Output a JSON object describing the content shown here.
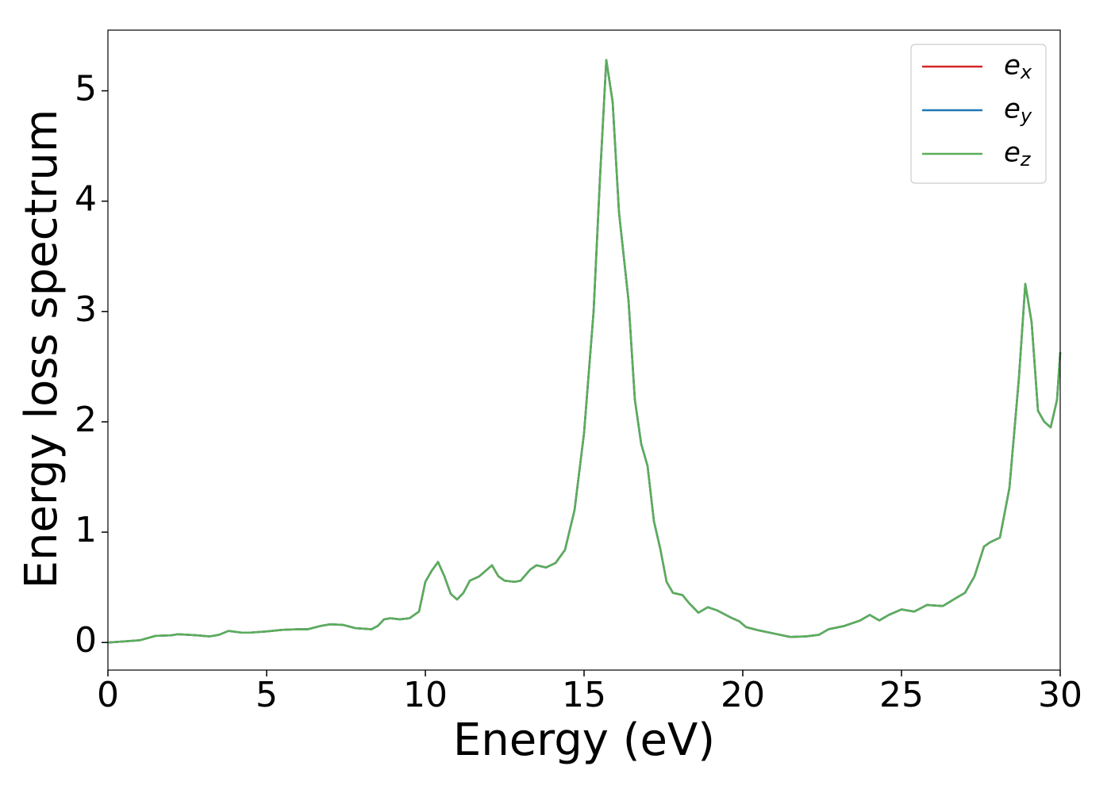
{
  "chart_data": {
    "type": "line",
    "x_label": "Energy (eV)",
    "y_label": "Energy loss spectrum",
    "xlim": [
      0,
      30
    ],
    "ylim": [
      -0.25,
      5.55
    ],
    "xticks": [
      0,
      5,
      10,
      15,
      20,
      25,
      30
    ],
    "yticks": [
      0,
      1,
      2,
      3,
      4,
      5
    ],
    "legend": "upper right",
    "grid": false,
    "x": [
      0,
      0.5,
      1,
      1.5,
      2,
      2.2,
      2.8,
      3.2,
      3.5,
      3.8,
      4.2,
      4.5,
      5,
      5.5,
      6,
      6.3,
      6.7,
      7,
      7.4,
      7.8,
      8.3,
      8.5,
      8.7,
      8.9,
      9.2,
      9.5,
      9.8,
      10,
      10.2,
      10.4,
      10.6,
      10.8,
      11,
      11.2,
      11.4,
      11.7,
      11.9,
      12.1,
      12.3,
      12.5,
      12.8,
      13,
      13.3,
      13.5,
      13.8,
      14.1,
      14.4,
      14.7,
      15,
      15.3,
      15.5,
      15.7,
      15.9,
      16.1,
      16.4,
      16.6,
      16.8,
      17,
      17.2,
      17.4,
      17.6,
      17.8,
      18.1,
      18.3,
      18.6,
      18.9,
      19.2,
      19.6,
      19.9,
      20.1,
      20.5,
      21,
      21.5,
      22,
      22.4,
      22.7,
      23.2,
      23.7,
      24,
      24.3,
      24.6,
      25,
      25.4,
      25.8,
      26.3,
      26.7,
      27,
      27.3,
      27.6,
      27.8,
      28.1,
      28.4,
      28.7,
      28.9,
      29.1,
      29.3,
      29.5,
      29.7,
      29.9,
      30
    ],
    "series": [
      {
        "name": "e_x",
        "color": "#d62728",
        "values": [
          0,
          0.01,
          0.02,
          0.06,
          0.065,
          0.075,
          0.065,
          0.055,
          0.07,
          0.105,
          0.09,
          0.09,
          0.1,
          0.115,
          0.12,
          0.12,
          0.15,
          0.165,
          0.16,
          0.13,
          0.12,
          0.15,
          0.21,
          0.22,
          0.21,
          0.22,
          0.28,
          0.55,
          0.65,
          0.73,
          0.6,
          0.44,
          0.39,
          0.45,
          0.56,
          0.6,
          0.65,
          0.7,
          0.6,
          0.56,
          0.55,
          0.56,
          0.66,
          0.7,
          0.68,
          0.72,
          0.84,
          1.2,
          1.9,
          3.0,
          4.2,
          5.28,
          4.9,
          3.9,
          3.1,
          2.2,
          1.8,
          1.6,
          1.1,
          0.85,
          0.55,
          0.45,
          0.43,
          0.36,
          0.27,
          0.32,
          0.29,
          0.23,
          0.19,
          0.14,
          0.11,
          0.08,
          0.05,
          0.055,
          0.07,
          0.12,
          0.15,
          0.2,
          0.25,
          0.2,
          0.25,
          0.3,
          0.28,
          0.34,
          0.33,
          0.4,
          0.45,
          0.6,
          0.87,
          0.91,
          0.95,
          1.4,
          2.4,
          3.25,
          2.9,
          2.1,
          2.0,
          1.95,
          2.2,
          2.63
        ]
      },
      {
        "name": "e_y",
        "color": "#1f77b4",
        "values": [
          0,
          0.01,
          0.02,
          0.06,
          0.065,
          0.075,
          0.065,
          0.055,
          0.07,
          0.105,
          0.09,
          0.09,
          0.1,
          0.115,
          0.12,
          0.12,
          0.15,
          0.165,
          0.16,
          0.13,
          0.12,
          0.15,
          0.21,
          0.22,
          0.21,
          0.22,
          0.28,
          0.55,
          0.65,
          0.73,
          0.6,
          0.44,
          0.39,
          0.45,
          0.56,
          0.6,
          0.65,
          0.7,
          0.6,
          0.56,
          0.55,
          0.56,
          0.66,
          0.7,
          0.68,
          0.72,
          0.84,
          1.2,
          1.9,
          3.0,
          4.2,
          5.28,
          4.9,
          3.9,
          3.1,
          2.2,
          1.8,
          1.6,
          1.1,
          0.85,
          0.55,
          0.45,
          0.43,
          0.36,
          0.27,
          0.32,
          0.29,
          0.23,
          0.19,
          0.14,
          0.11,
          0.08,
          0.05,
          0.055,
          0.07,
          0.12,
          0.15,
          0.2,
          0.25,
          0.2,
          0.25,
          0.3,
          0.28,
          0.34,
          0.33,
          0.4,
          0.45,
          0.6,
          0.87,
          0.91,
          0.95,
          1.4,
          2.4,
          3.25,
          2.9,
          2.1,
          2.0,
          1.95,
          2.2,
          2.63
        ]
      },
      {
        "name": "e_z",
        "color": "#5aae5a",
        "values": [
          0,
          0.01,
          0.02,
          0.06,
          0.065,
          0.075,
          0.065,
          0.055,
          0.07,
          0.105,
          0.09,
          0.09,
          0.1,
          0.115,
          0.12,
          0.12,
          0.15,
          0.165,
          0.16,
          0.13,
          0.12,
          0.15,
          0.21,
          0.22,
          0.21,
          0.22,
          0.28,
          0.55,
          0.65,
          0.73,
          0.6,
          0.44,
          0.39,
          0.45,
          0.56,
          0.6,
          0.65,
          0.7,
          0.6,
          0.56,
          0.55,
          0.56,
          0.66,
          0.7,
          0.68,
          0.72,
          0.84,
          1.2,
          1.9,
          3.0,
          4.2,
          5.28,
          4.9,
          3.9,
          3.1,
          2.2,
          1.8,
          1.6,
          1.1,
          0.85,
          0.55,
          0.45,
          0.43,
          0.36,
          0.27,
          0.32,
          0.29,
          0.23,
          0.19,
          0.14,
          0.11,
          0.08,
          0.05,
          0.055,
          0.07,
          0.12,
          0.15,
          0.2,
          0.25,
          0.2,
          0.25,
          0.3,
          0.28,
          0.34,
          0.33,
          0.4,
          0.45,
          0.6,
          0.87,
          0.91,
          0.95,
          1.4,
          2.4,
          3.25,
          2.9,
          2.1,
          2.0,
          1.95,
          2.2,
          2.63
        ]
      }
    ]
  }
}
